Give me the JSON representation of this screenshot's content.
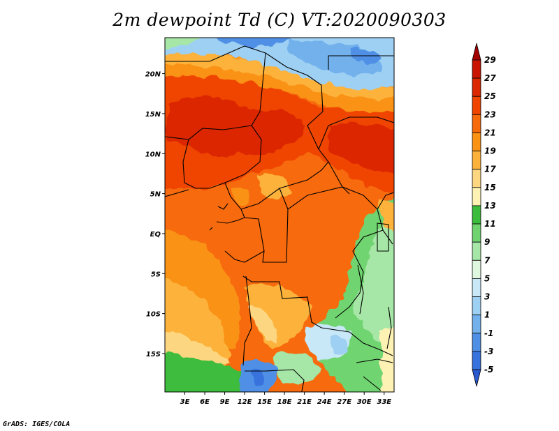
{
  "title": "2m dewpoint Td (C) VT:2020090303",
  "credit": "GrADS: IGES/COLA",
  "map": {
    "lat_ticks": [
      "20N",
      "15N",
      "10N",
      "5N",
      "EQ",
      "5S",
      "10S",
      "15S"
    ],
    "lon_ticks": [
      "3E",
      "6E",
      "9E",
      "12E",
      "15E",
      "18E",
      "21E",
      "24E",
      "27E",
      "30E",
      "33E"
    ],
    "lat_values": [
      20,
      15,
      10,
      5,
      0,
      -5,
      -10,
      -15
    ],
    "lon_values": [
      3,
      6,
      9,
      12,
      15,
      18,
      21,
      24,
      27,
      30,
      33
    ],
    "extent": {
      "lon_min": 0,
      "lon_max": 34.5,
      "lat_min": -19.8,
      "lat_max": 24.5
    }
  },
  "colorbar": {
    "labels": [
      "29",
      "27",
      "25",
      "23",
      "21",
      "19",
      "17",
      "15",
      "13",
      "11",
      "9",
      "7",
      "5",
      "3",
      "1",
      "-1",
      "-3",
      "-5"
    ],
    "colors": [
      "#a50000",
      "#c81400",
      "#dc2800",
      "#ef4500",
      "#f76a0c",
      "#fa9213",
      "#fcb23a",
      "#fdd681",
      "#fdf2b4",
      "#3cbc3c",
      "#6fd46f",
      "#a6e6a6",
      "#dff7df",
      "#c8e8f8",
      "#9ed0f3",
      "#72b1ec",
      "#4f90e6",
      "#3772dd",
      "#2a58cf"
    ]
  }
}
